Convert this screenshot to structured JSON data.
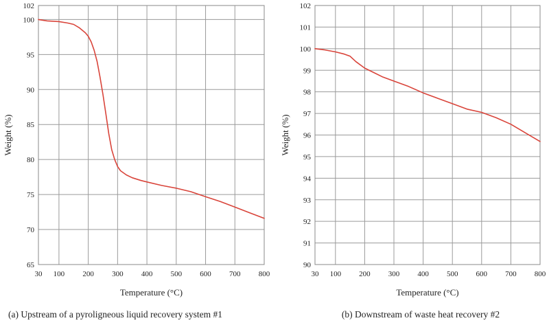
{
  "chart_data": [
    {
      "type": "line",
      "caption": "(a) Upstream of a pyroligneous liquid recovery system #1",
      "xlabel": "Temperature (°C)",
      "ylabel": "Weight (%)",
      "xlim": [
        30,
        800
      ],
      "ylim": [
        65,
        102
      ],
      "xticks": [
        "30",
        "100",
        "200",
        "300",
        "400",
        "500",
        "600",
        "700",
        "800"
      ],
      "yticks": [
        "65",
        "70",
        "75",
        "80",
        "85",
        "90",
        "95",
        "100",
        "102"
      ],
      "grid": true,
      "color": "#d9443a",
      "series": [
        {
          "x": [
            30,
            60,
            100,
            130,
            150,
            170,
            190,
            200,
            210,
            220,
            230,
            240,
            250,
            260,
            270,
            280,
            290,
            300,
            310,
            330,
            350,
            380,
            400,
            450,
            500,
            550,
            600,
            650,
            700,
            750,
            800
          ],
          "y": [
            100,
            99.8,
            99.7,
            99.5,
            99.3,
            98.8,
            98.1,
            97.6,
            96.8,
            95.6,
            94.0,
            91.8,
            89.3,
            86.5,
            83.7,
            81.4,
            80.0,
            79.0,
            78.4,
            77.8,
            77.4,
            77.0,
            76.8,
            76.3,
            75.9,
            75.4,
            74.7,
            74.0,
            73.2,
            72.4,
            71.6
          ]
        }
      ]
    },
    {
      "type": "line",
      "caption": "(b) Downstream of waste heat recovery #2",
      "xlabel": "Temperature (°C)",
      "ylabel": "Weight (%)",
      "xlim": [
        30,
        800
      ],
      "ylim": [
        90,
        102
      ],
      "xticks": [
        "30",
        "100",
        "200",
        "300",
        "400",
        "500",
        "600",
        "700",
        "800"
      ],
      "yticks": [
        "90",
        "91",
        "92",
        "93",
        "94",
        "95",
        "96",
        "97",
        "98",
        "99",
        "100",
        "101",
        "102"
      ],
      "grid": true,
      "color": "#d9443a",
      "series": [
        {
          "x": [
            30,
            60,
            100,
            130,
            150,
            170,
            200,
            230,
            260,
            300,
            350,
            400,
            450,
            500,
            550,
            600,
            650,
            700,
            750,
            800
          ],
          "y": [
            100,
            99.95,
            99.85,
            99.75,
            99.65,
            99.4,
            99.1,
            98.9,
            98.7,
            98.5,
            98.25,
            97.95,
            97.7,
            97.45,
            97.2,
            97.05,
            96.8,
            96.5,
            96.1,
            95.7
          ]
        }
      ]
    }
  ]
}
